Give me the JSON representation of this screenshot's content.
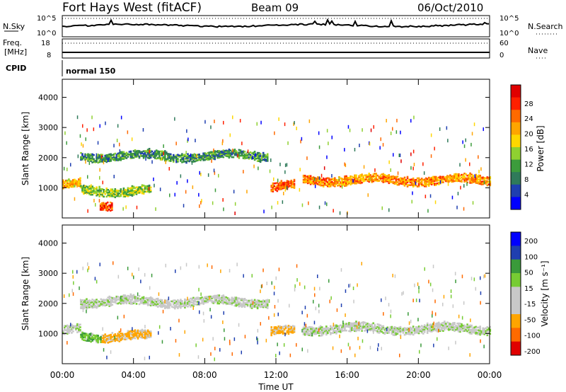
{
  "header": {
    "station": "Fort Hays West (fitACF)",
    "beam": "Beam 09",
    "date": "06/Oct/2010"
  },
  "noise_panel": {
    "left_label": "N.Sky",
    "left_ticks": [
      "10^5",
      "10^0"
    ],
    "right_ticks": [
      "10^5",
      "10^0"
    ],
    "right_label": "N.Search"
  },
  "freq_panel": {
    "left_label_1": "Freq.",
    "left_label_2": "[MHz]",
    "left_ticks": [
      "18",
      "8"
    ],
    "right_ticks": [
      "60",
      "0"
    ],
    "right_label": "Nave"
  },
  "cpid": {
    "label": "CPID",
    "value": "normal 150"
  },
  "colors": {
    "power_scale": [
      "#0000ff",
      "#1f3fb0",
      "#2f7a5a",
      "#3c9c3c",
      "#8fd030",
      "#ffd700",
      "#ffa500",
      "#ff6a00",
      "#ff2000",
      "#e00000"
    ],
    "velocity_scale": [
      "#e00000",
      "#ff6a00",
      "#ffa500",
      "#c8c8c8",
      "#c8c8c8",
      "#77cc33",
      "#3a9a3a",
      "#1f3fb0",
      "#0000ff"
    ]
  },
  "chart_data": [
    {
      "type": "heatmap",
      "parameter": "Power",
      "ylabel": "Slant Range [km]",
      "ylim": [
        0,
        4600
      ],
      "ytick_labels": [
        "1000",
        "2000",
        "3000",
        "4000"
      ],
      "xlim": [
        0,
        24
      ],
      "colorbar": {
        "label": "Power [dB]",
        "tick_labels": [
          "4",
          "8",
          "12",
          "16",
          "20",
          "24",
          "28"
        ]
      },
      "echo_regions": [
        {
          "t_start": 0.0,
          "t_end": 1.0,
          "range_center": 1100,
          "value": 20
        },
        {
          "t_start": 1.0,
          "t_end": 5.0,
          "range_center": 900,
          "value": 14
        },
        {
          "t_start": 1.0,
          "t_end": 11.5,
          "range_center": 2050,
          "value": 10
        },
        {
          "t_start": 11.7,
          "t_end": 13.0,
          "range_center": 1050,
          "value": 24
        },
        {
          "t_start": 13.5,
          "t_end": 24.0,
          "range_center": 1250,
          "value": 22
        },
        {
          "t_start": 2.1,
          "t_end": 2.8,
          "range_center": 300,
          "value": 26
        }
      ]
    },
    {
      "type": "heatmap",
      "parameter": "Velocity",
      "ylabel": "Slant Range [km]",
      "xlabel": "Time UT",
      "ylim": [
        0,
        4600
      ],
      "ytick_labels": [
        "1000",
        "2000",
        "3000",
        "4000"
      ],
      "xlim": [
        0,
        24
      ],
      "xtick_labels": [
        "00:00",
        "04:00",
        "08:00",
        "12:00",
        "16:00",
        "20:00",
        "00:00"
      ],
      "colorbar": {
        "label": "Velocity [m s⁻¹]",
        "tick_labels": [
          "200",
          "100",
          "50",
          "15",
          "-15",
          "-50",
          "-100",
          "-200"
        ]
      },
      "echo_regions": [
        {
          "t_start": 0.0,
          "t_end": 1.0,
          "range_center": 1100,
          "value": 0
        },
        {
          "t_start": 1.0,
          "t_end": 2.2,
          "range_center": 850,
          "value": 40
        },
        {
          "t_start": 2.2,
          "t_end": 5.0,
          "range_center": 900,
          "value": -60
        },
        {
          "t_start": 1.0,
          "t_end": 11.5,
          "range_center": 2050,
          "value": 0
        },
        {
          "t_start": 11.7,
          "t_end": 13.0,
          "range_center": 1050,
          "value": -60
        },
        {
          "t_start": 13.5,
          "t_end": 24.0,
          "range_center": 1150,
          "value": 0
        }
      ]
    }
  ]
}
